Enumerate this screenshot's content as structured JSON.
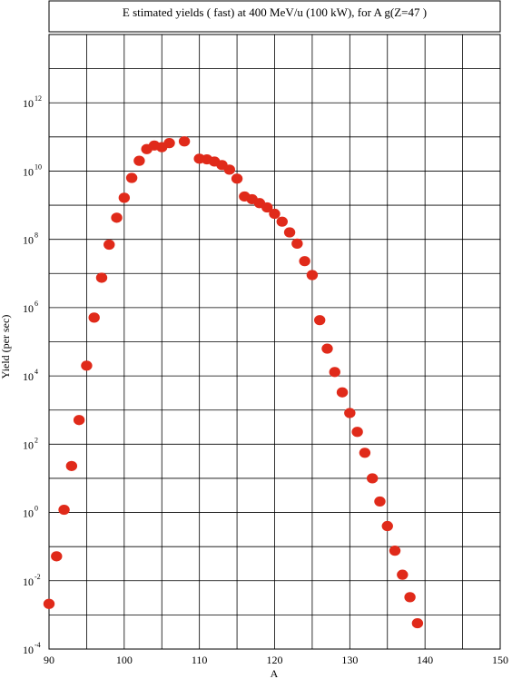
{
  "chart_data": {
    "type": "scatter",
    "title": "E stimated yields ( fast) at 400  MeV/u (100 kW),  for A g(Z=47 )",
    "xlabel": "A",
    "ylabel": "Yield (per sec)",
    "xlim": [
      90,
      150
    ],
    "ylim_exponent": [
      -4,
      14
    ],
    "y_scale": "log",
    "grid": true,
    "marker_color": "#e02a1a",
    "x_ticks": [
      "90",
      "100",
      "110",
      "120",
      "130",
      "140",
      "150"
    ],
    "y_ticks": [
      {
        "base": "10",
        "exp": "-4",
        "value": 0.0001
      },
      {
        "base": "10",
        "exp": "-2",
        "value": 0.01
      },
      {
        "base": "10",
        "exp": "0",
        "value": 1
      },
      {
        "base": "10",
        "exp": "2",
        "value": 100
      },
      {
        "base": "10",
        "exp": "4",
        "value": 10000
      },
      {
        "base": "10",
        "exp": "6",
        "value": 1000000
      },
      {
        "base": "10",
        "exp": "8",
        "value": 100000000
      },
      {
        "base": "10",
        "exp": "10",
        "value": 10000000000
      },
      {
        "base": "10",
        "exp": "12",
        "value": 1000000000000
      }
    ],
    "x": [
      90,
      91,
      92,
      93,
      94,
      95,
      96,
      97,
      98,
      99,
      100,
      101,
      102,
      103,
      104,
      105,
      106,
      108,
      110,
      111,
      112,
      113,
      114,
      115,
      116,
      117,
      118,
      119,
      120,
      121,
      122,
      123,
      124,
      125,
      126,
      127,
      128,
      129,
      130,
      131,
      132,
      133,
      134,
      135,
      136,
      137,
      138,
      139
    ],
    "y": [
      0.0021,
      0.052,
      1.2,
      23,
      510,
      20000,
      510000,
      7500000,
      70000000,
      430000000,
      1650000000,
      6300000000,
      20000000000,
      44000000000,
      56000000000,
      50000000000,
      66000000000,
      74000000000,
      23000000000,
      22000000000,
      19000000000,
      15000000000,
      11000000000,
      6000000000,
      1800000000,
      1500000000,
      1150000000,
      860000000,
      560000000,
      330000000,
      160000000,
      75000000,
      23000000,
      9000000,
      430000,
      63000,
      13000,
      3300,
      820,
      230,
      56,
      10,
      2.1,
      0.4,
      0.076,
      0.015,
      0.0033,
      0.00057
    ]
  }
}
